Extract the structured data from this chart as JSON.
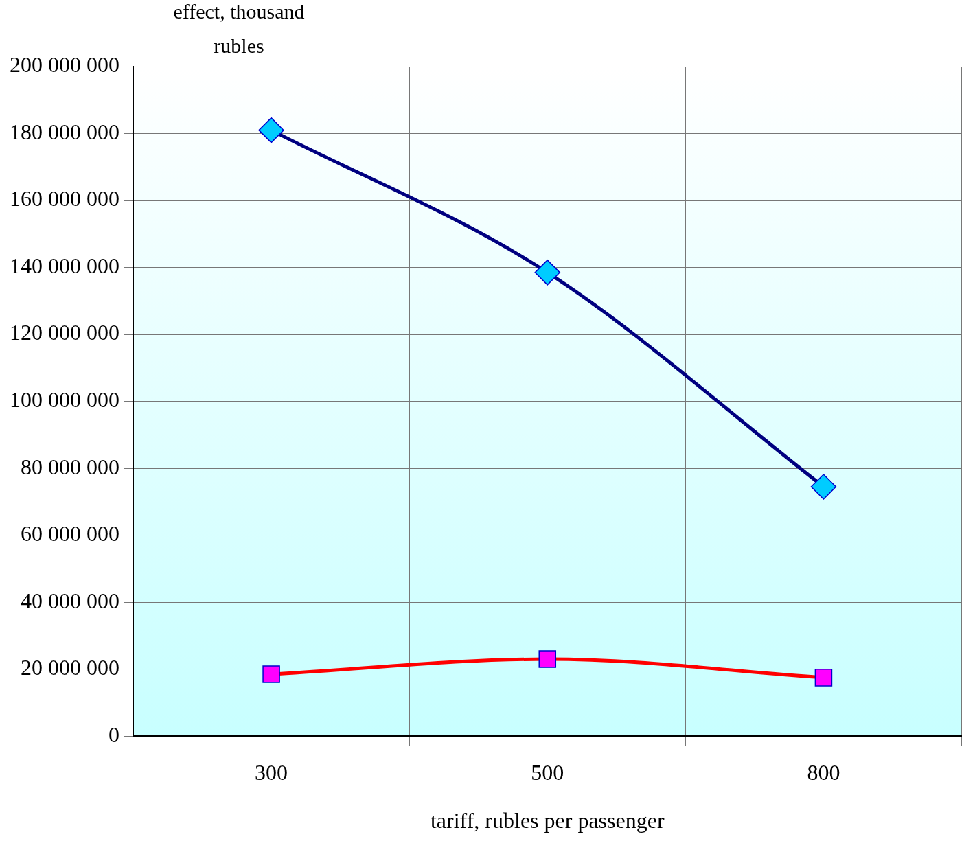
{
  "chart_data": {
    "type": "line",
    "xlabel": "tariff, rubles per passenger",
    "ylabel": "effect, thousand rubles",
    "categories": [
      "300",
      "500",
      "800"
    ],
    "series": [
      {
        "color": "#000080",
        "colors": [
          "#00ccff",
          "#00ccff",
          "#00ccff"
        ],
        "marker": "diamond",
        "values": [
          181000000,
          138500000,
          74500000
        ]
      },
      {
        "color": "#ff0000",
        "colors": [
          "#ff00ff",
          "#ff00ff",
          "#ff00ff"
        ],
        "marker": "square",
        "values": [
          18500000,
          23000000,
          17500000
        ]
      }
    ],
    "ylim": [
      0,
      200000000
    ],
    "yticks": [
      {
        "value": 0,
        "label": "0"
      },
      {
        "value": 20000000,
        "label": "20 000 000"
      },
      {
        "value": 40000000,
        "label": "40 000 000"
      },
      {
        "value": 60000000,
        "label": "60 000 000"
      },
      {
        "value": 80000000,
        "label": "80 000 000"
      },
      {
        "value": 100000000,
        "label": "100 000 000"
      },
      {
        "value": 120000000,
        "label": "120 000 000"
      },
      {
        "value": 140000000,
        "label": "140 000 000"
      },
      {
        "value": 160000000,
        "label": "160 000 000"
      },
      {
        "value": 180000000,
        "label": "180 000 000"
      },
      {
        "value": 200000000,
        "label": "200 000 000"
      }
    ],
    "grid": true,
    "legend": false,
    "line_style": "solid"
  }
}
